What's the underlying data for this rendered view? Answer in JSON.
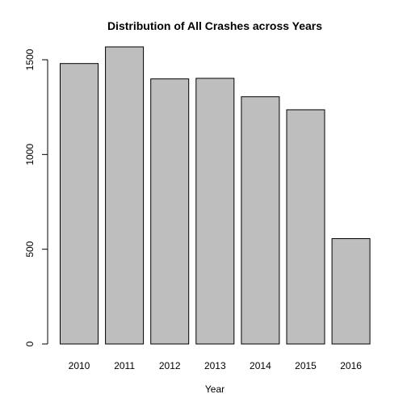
{
  "chart_data": {
    "type": "bar",
    "title": "Distribution of All Crashes across Years",
    "xlabel": "Year",
    "ylabel": "",
    "categories": [
      "2010",
      "2011",
      "2012",
      "2013",
      "2014",
      "2015",
      "2016"
    ],
    "values": [
      1480,
      1568,
      1399,
      1402,
      1305,
      1236,
      556
    ],
    "ylim": [
      0,
      1500
    ],
    "yticks": [
      0,
      500,
      1000,
      1500
    ],
    "grid": false,
    "legend": "none",
    "bar_color": "#bebebe",
    "edge_color": "#000000"
  }
}
